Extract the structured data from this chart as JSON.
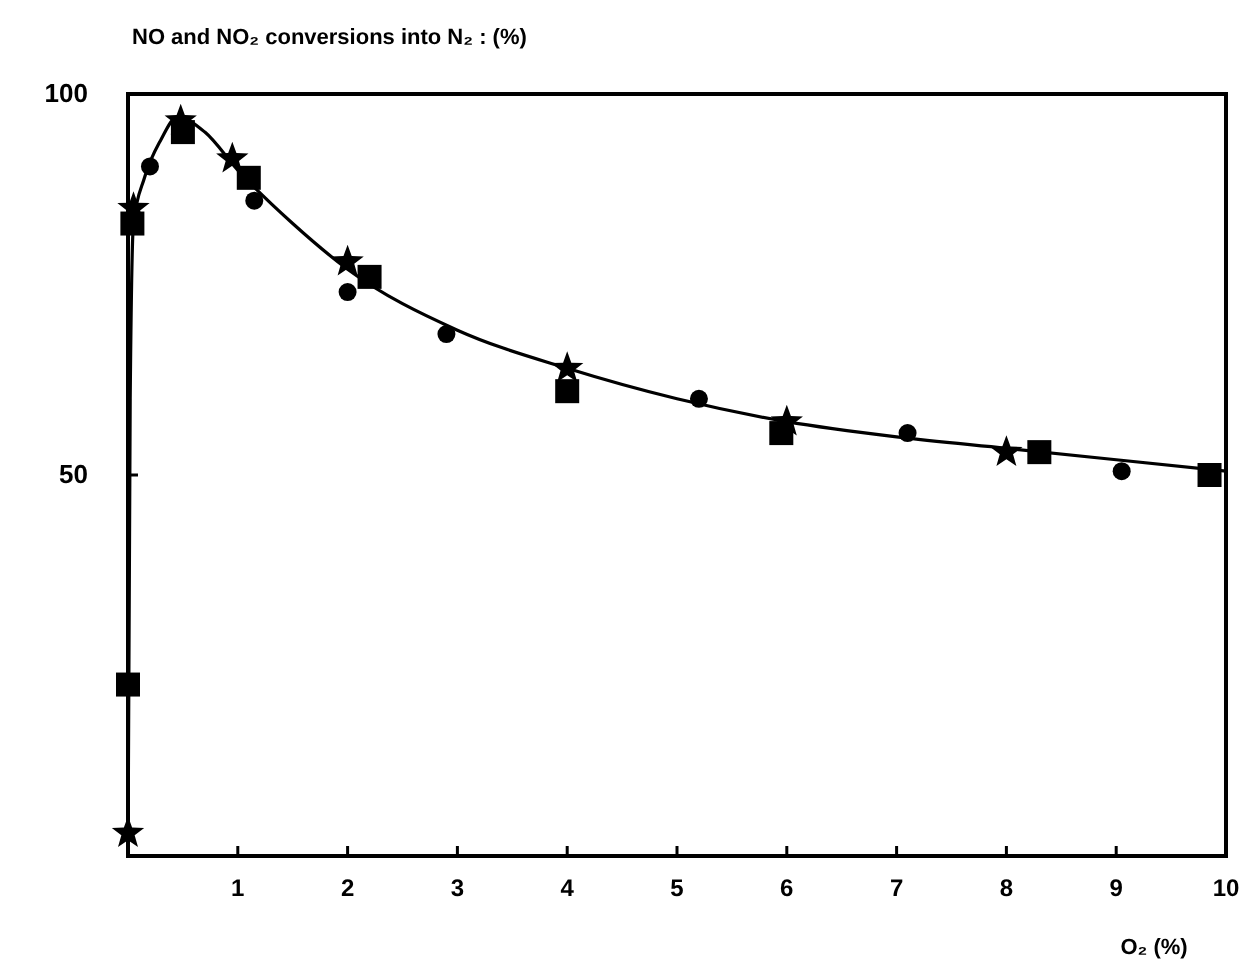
{
  "chart_data": {
    "type": "scatter",
    "ylabel": "NO and NO₂  conversions into N₂ : (%)",
    "xlabel": "O₂ (%)",
    "xlim": [
      0,
      10
    ],
    "xticks": [
      1,
      2,
      3,
      4,
      5,
      6,
      7,
      8,
      9,
      10
    ],
    "ylim": [
      0,
      100
    ],
    "yticks": [
      {
        "value": 0,
        "label": null
      },
      50,
      100
    ],
    "grid": false,
    "series": [
      {
        "color": "#000000",
        "marker": "star",
        "x": [
          0,
          0.05,
          0.48,
          0.95,
          2.0,
          4.0,
          6.0,
          8.0
        ],
        "values": [
          3,
          85,
          96.5,
          91.5,
          78,
          64,
          57,
          53
        ]
      },
      {
        "color": "#000000",
        "marker": "square",
        "x": [
          0,
          0.04,
          0.5,
          1.1,
          2.2,
          4.0,
          5.95,
          8.3,
          9.85
        ],
        "values": [
          22.5,
          83,
          95,
          89,
          76,
          61,
          55.5,
          53,
          50
        ]
      },
      {
        "color": "#000000",
        "marker": "circle",
        "x": [
          0.2,
          1.15,
          2.0,
          2.9,
          5.2,
          7.1,
          9.05
        ],
        "values": [
          90.5,
          86,
          74,
          68.5,
          60,
          55.5,
          50.5
        ]
      },
      {
        "type": "line",
        "color": "#000000",
        "marker": "none",
        "line_style": "solid",
        "x": [
          0,
          0.02,
          0.05,
          0.15,
          0.3,
          0.45,
          0.7,
          1.0,
          1.5,
          2.0,
          3.0,
          4.0,
          5.0,
          6.0,
          7.0,
          8.0,
          9.0,
          10.0
        ],
        "values": [
          0,
          60,
          83,
          89,
          94,
          97,
          95,
          90,
          83,
          77,
          69,
          64,
          60,
          57,
          55,
          53.5,
          52,
          50.5
        ]
      }
    ]
  }
}
